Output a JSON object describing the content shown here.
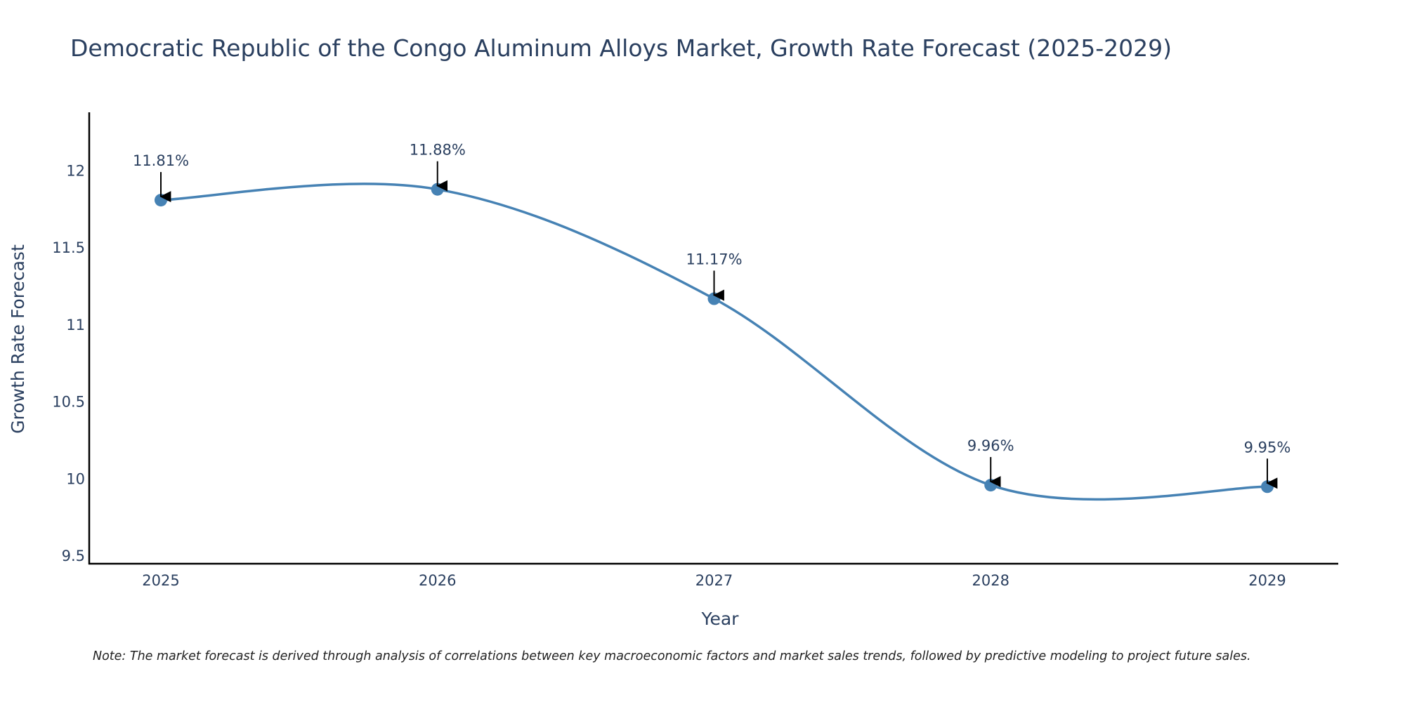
{
  "chart_data": {
    "type": "line",
    "title": "Democratic Republic of the Congo Aluminum Alloys Market, Growth Rate Forecast (2025-2029)",
    "xlabel": "Year",
    "ylabel": "Growth Rate Forecast",
    "categories": [
      "2025",
      "2026",
      "2027",
      "2028",
      "2029"
    ],
    "values": [
      11.81,
      11.88,
      11.17,
      9.96,
      9.95
    ],
    "data_labels": [
      "11.81%",
      "11.88%",
      "11.17%",
      "9.96%",
      "9.95%"
    ],
    "y_ticks": [
      9.5,
      10,
      10.5,
      11,
      11.5,
      12
    ],
    "y_tick_labels": [
      "9.5",
      "10",
      "10.5",
      "11",
      "11.5",
      "12"
    ],
    "ylim": [
      9.45,
      12.38
    ],
    "line_shape": "spline",
    "grid": false,
    "colors": {
      "line": "#4682b4",
      "marker": "#4682b4",
      "arrow": "#000000",
      "axis": "#000000",
      "text": "#2a3f5f"
    }
  },
  "note": "Note: The market forecast is derived through analysis of correlations between key macroeconomic factors and market sales trends, followed by predictive modeling to project future sales."
}
